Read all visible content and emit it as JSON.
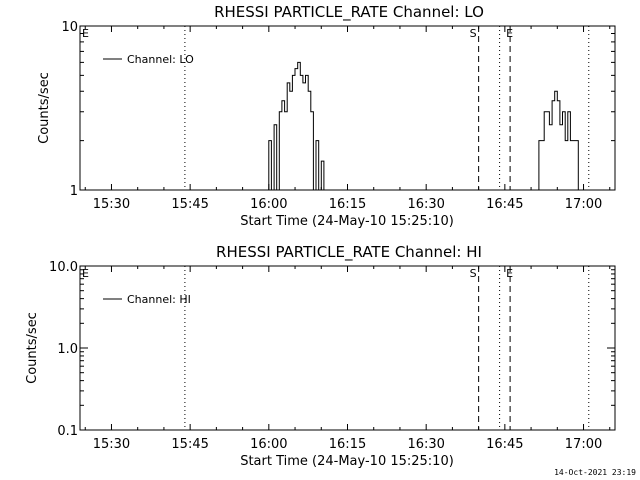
{
  "timestamp": "14-Oct-2021 23:19",
  "chart_data": [
    {
      "type": "line",
      "title": "RHESSI PARTICLE_RATE Channel: LO",
      "xlabel": "Start Time (24-May-10 15:25:10)",
      "ylabel": "Counts/sec",
      "yscale": "log",
      "ylim": [
        1,
        10
      ],
      "xlim": [
        "15:24",
        "17:06"
      ],
      "y_tick_labels": [
        "1",
        "10"
      ],
      "x_tick_labels": [
        "15:30",
        "15:45",
        "16:00",
        "16:15",
        "16:30",
        "16:45",
        "17:00"
      ],
      "legend": {
        "position": "top-left",
        "entries": [
          "Channel: LO"
        ]
      },
      "markers": [
        {
          "label": "E",
          "time": "15:24",
          "style": "none"
        },
        {
          "label": "",
          "time": "15:44",
          "style": "dotted"
        },
        {
          "label": "S",
          "time": "16:40",
          "style": "dashed"
        },
        {
          "label": "",
          "time": "16:44",
          "style": "dotted"
        },
        {
          "label": "E",
          "time": "16:46",
          "style": "dashed"
        },
        {
          "label": "",
          "time": "17:01",
          "style": "dotted"
        }
      ],
      "series": [
        {
          "name": "Channel: LO",
          "x": [
            "15:59.5",
            "16:00",
            "16:00.5",
            "16:01",
            "16:01.5",
            "16:02",
            "16:02.5",
            "16:03",
            "16:03.5",
            "16:04",
            "16:04.5",
            "16:05",
            "16:05.5",
            "16:06",
            "16:06.5",
            "16:07",
            "16:07.5",
            "16:08",
            "16:08.5",
            "16:09",
            "16:09.5",
            "16:10",
            "16:10.5",
            "16:51",
            "16:51.5",
            "16:52",
            "16:52.5",
            "16:53",
            "16:53.5",
            "16:54",
            "16:54.5",
            "16:55",
            "16:55.5",
            "16:56",
            "16:56.5",
            "16:57",
            "16:57.5",
            "16:58",
            "16:58.5",
            "16:59"
          ],
          "y": [
            1,
            2,
            1,
            2.5,
            1,
            3,
            3.5,
            3,
            4.5,
            4,
            5,
            5.5,
            6,
            5,
            4.5,
            5,
            4,
            3,
            1,
            2,
            1,
            1.5,
            1,
            1,
            2,
            2,
            3,
            3,
            2.5,
            3.5,
            4,
            3.5,
            2.5,
            3,
            2,
            3,
            2,
            2,
            2,
            1
          ]
        }
      ]
    },
    {
      "type": "line",
      "title": "RHESSI PARTICLE_RATE Channel: HI",
      "xlabel": "Start Time (24-May-10 15:25:10)",
      "ylabel": "Counts/sec",
      "yscale": "log",
      "ylim": [
        0.1,
        10
      ],
      "xlim": [
        "15:24",
        "17:06"
      ],
      "y_tick_labels": [
        "0.1",
        "1.0",
        "10.0"
      ],
      "x_tick_labels": [
        "15:30",
        "15:45",
        "16:00",
        "16:15",
        "16:30",
        "16:45",
        "17:00"
      ],
      "legend": {
        "position": "top-left",
        "entries": [
          "Channel: HI"
        ]
      },
      "markers": [
        {
          "label": "E",
          "time": "15:24",
          "style": "none"
        },
        {
          "label": "",
          "time": "15:44",
          "style": "dotted"
        },
        {
          "label": "S",
          "time": "16:40",
          "style": "dashed"
        },
        {
          "label": "",
          "time": "16:44",
          "style": "dotted"
        },
        {
          "label": "E",
          "time": "16:46",
          "style": "dashed"
        },
        {
          "label": "",
          "time": "17:01",
          "style": "dotted"
        }
      ],
      "series": [
        {
          "name": "Channel: HI",
          "x": [],
          "y": []
        }
      ]
    }
  ]
}
